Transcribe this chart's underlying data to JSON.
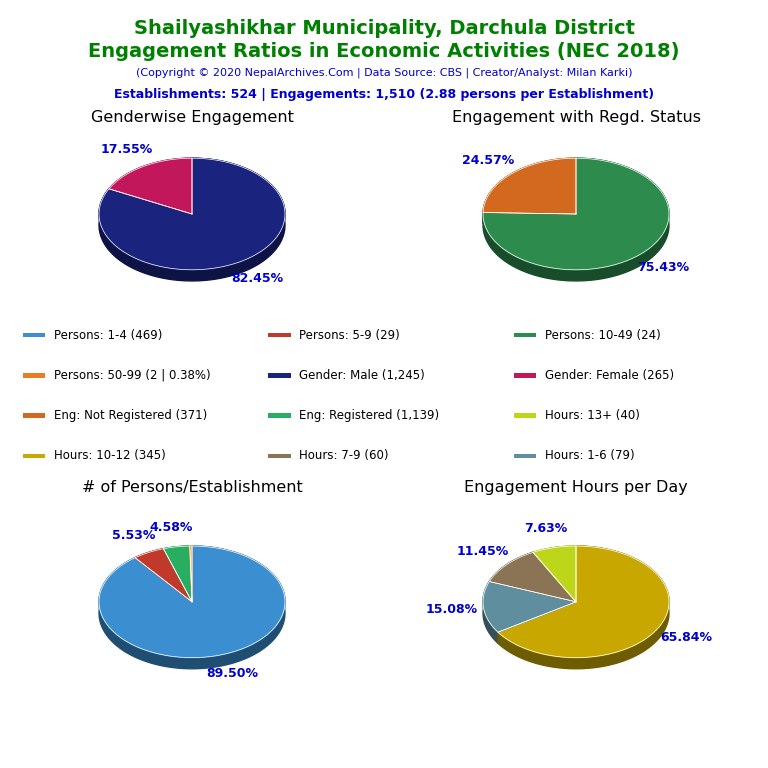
{
  "title_line1": "Shailyashikhar Municipality, Darchula District",
  "title_line2": "Engagement Ratios in Economic Activities (NEC 2018)",
  "subtitle": "(Copyright © 2020 NepalArchives.Com | Data Source: CBS | Creator/Analyst: Milan Karki)",
  "info_line": "Establishments: 524 | Engagements: 1,510 (2.88 persons per Establishment)",
  "title_color": "#008000",
  "subtitle_color": "#0000CD",
  "info_color": "#0000CD",
  "pie1_title": "Genderwise Engagement",
  "pie1_values": [
    82.45,
    17.55
  ],
  "pie1_colors": [
    "#1a237e",
    "#c2185b"
  ],
  "pie1_labels": [
    "82.45%",
    "17.55%"
  ],
  "pie1_startangle": 90,
  "pie2_title": "Engagement with Regd. Status",
  "pie2_values": [
    75.43,
    24.57
  ],
  "pie2_colors": [
    "#2e8b4e",
    "#d2691e"
  ],
  "pie2_labels": [
    "75.43%",
    "24.57%"
  ],
  "pie2_startangle": 90,
  "pie3_title": "# of Persons/Establishment",
  "pie3_values": [
    89.5,
    5.53,
    4.58,
    0.38
  ],
  "pie3_colors": [
    "#3b8ecf",
    "#c0392b",
    "#27ae60",
    "#e67e22"
  ],
  "pie3_labels": [
    "89.50%",
    "5.53%",
    "4.58%",
    ""
  ],
  "pie3_startangle": 90,
  "pie4_title": "Engagement Hours per Day",
  "pie4_values": [
    65.84,
    15.08,
    11.45,
    7.63
  ],
  "pie4_colors": [
    "#c8a800",
    "#5f8f9f",
    "#8B7355",
    "#bdd619"
  ],
  "pie4_labels": [
    "65.84%",
    "15.08%",
    "11.45%",
    "7.63%"
  ],
  "pie4_startangle": 90,
  "label_color": "#0000CD",
  "legend_items": [
    {
      "label": "Persons: 1-4 (469)",
      "color": "#3b8ecf"
    },
    {
      "label": "Persons: 5-9 (29)",
      "color": "#c0392b"
    },
    {
      "label": "Persons: 10-49 (24)",
      "color": "#2e8b4e"
    },
    {
      "label": "Persons: 50-99 (2 | 0.38%)",
      "color": "#e67e22"
    },
    {
      "label": "Gender: Male (1,245)",
      "color": "#1a237e"
    },
    {
      "label": "Gender: Female (265)",
      "color": "#c2185b"
    },
    {
      "label": "Eng: Not Registered (371)",
      "color": "#d2691e"
    },
    {
      "label": "Eng: Registered (1,139)",
      "color": "#27ae60"
    },
    {
      "label": "Hours: 13+ (40)",
      "color": "#bdd619"
    },
    {
      "label": "Hours: 10-12 (345)",
      "color": "#c8a800"
    },
    {
      "label": "Hours: 7-9 (60)",
      "color": "#8B7355"
    },
    {
      "label": "Hours: 1-6 (79)",
      "color": "#5f8f9f"
    }
  ],
  "bg_color": "#ffffff"
}
